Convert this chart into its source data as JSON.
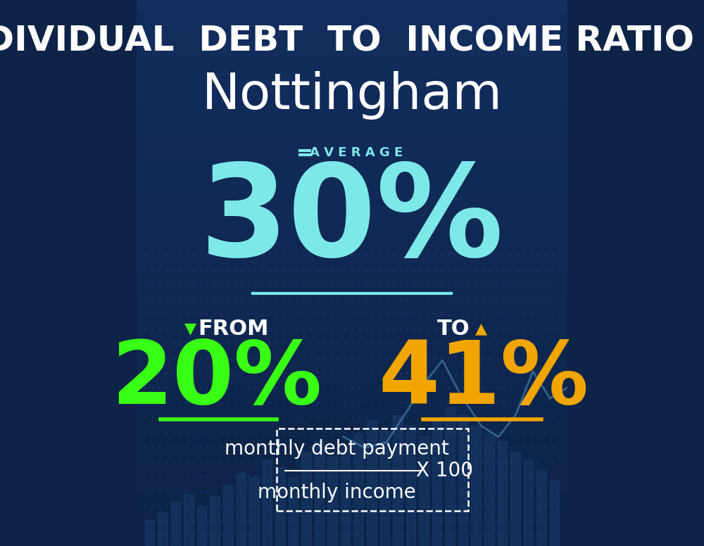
{
  "title_line1": "INDIVIDUAL  DEBT  TO  INCOME RATIO  IN",
  "title_line2": "Nottingham",
  "average_label": "A V E R A G E",
  "average_value": "30%",
  "from_label": "FROM",
  "from_value": "20%",
  "to_label": "TO",
  "to_value": "41%",
  "formula_numerator": "monthly debt payment",
  "formula_denominator": "monthly income",
  "formula_multiplier": "X 100",
  "bg_color_top": "#0d2347",
  "bg_color_bottom": "#122d5e",
  "avg_color": "#7de8e8",
  "from_color": "#39ff14",
  "to_color": "#f0a500",
  "white_color": "#ffffff",
  "title_fontsize": 36,
  "subtitle_fontsize": 52,
  "avg_value_fontsize": 130,
  "sub_value_fontsize": 90,
  "sub_label_fontsize": 22,
  "formula_fontsize": 20
}
